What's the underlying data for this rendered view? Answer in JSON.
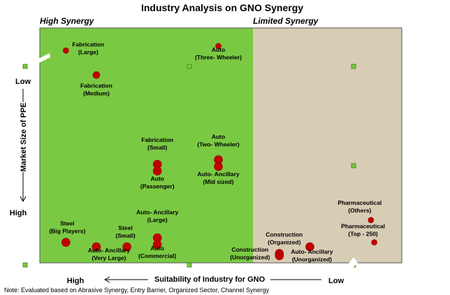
{
  "chart_data": {
    "type": "scatter",
    "title": "Industry Analysis on GNO Synergy",
    "regions": [
      {
        "name": "High Synergy",
        "color": "#7ac943"
      },
      {
        "name": "Limited Synergy",
        "color": "#d7cdb4"
      }
    ],
    "xlabel": "Suitability of Industry for GNO",
    "x_left_label": "High",
    "x_right_label": "Low",
    "ylabel": "Market Size of PPE",
    "y_top_label": "Low",
    "y_bottom_label": "High",
    "xlim": [
      0,
      100
    ],
    "ylim": [
      0,
      100
    ],
    "points": [
      {
        "label": [
          "Fabrication",
          "(Large)"
        ],
        "x": 5,
        "y": 93,
        "r": 4
      },
      {
        "label": [
          "Fabrication",
          "(Medium)"
        ],
        "x": 14,
        "y": 82,
        "r": 5
      },
      {
        "label": [
          "Auto",
          "(Three- Wheeler)"
        ],
        "x": 50,
        "y": 95,
        "r": 4
      },
      {
        "label": [
          "Fabrication",
          "(Small)"
        ],
        "x": 32,
        "y": 42,
        "r": 6
      },
      {
        "label": [
          "Auto",
          "(Passenger)"
        ],
        "x": 32,
        "y": 39,
        "r": 6
      },
      {
        "label": [
          "Auto",
          "(Two- Wheeler)"
        ],
        "x": 50,
        "y": 44,
        "r": 6
      },
      {
        "label": [
          "Auto- Ancillary",
          "(Mid sized)"
        ],
        "x": 50,
        "y": 41,
        "r": 6
      },
      {
        "label": [
          "Steel",
          "(Big Players)"
        ],
        "x": 5,
        "y": 7,
        "r": 6
      },
      {
        "label": [
          "Auto- Ancillary",
          "(Very Large)"
        ],
        "x": 14,
        "y": 5,
        "r": 6
      },
      {
        "label": [
          "Steel",
          "(Small)"
        ],
        "x": 23,
        "y": 5,
        "r": 6
      },
      {
        "label": [
          "Auto- Ancillary",
          "(Large)"
        ],
        "x": 32,
        "y": 9,
        "r": 6
      },
      {
        "label": [
          "Auto",
          "(Commercial)"
        ],
        "x": 32,
        "y": 6,
        "r": 6
      },
      {
        "label": [
          "Construction",
          "(Organized)"
        ],
        "x": 68,
        "y": 2,
        "r": 6
      },
      {
        "label": [
          "Construction",
          "(Unorganized)"
        ],
        "x": 68,
        "y": 1,
        "r": 6
      },
      {
        "label": [
          "Auto- Ancillary",
          "(Unorganized)"
        ],
        "x": 77,
        "y": 5,
        "r": 6
      },
      {
        "label": [
          "Pharmaceutical",
          "(Others)"
        ],
        "x": 95,
        "y": 17,
        "r": 4
      },
      {
        "label": [
          "Pharmaceutical",
          "(Top - 250)"
        ],
        "x": 96,
        "y": 7,
        "r": 4
      }
    ],
    "note": "Note: Evaluated based on Abrasive Synergy, Entry Barrier, Organized Sector, Channel Synergy"
  }
}
